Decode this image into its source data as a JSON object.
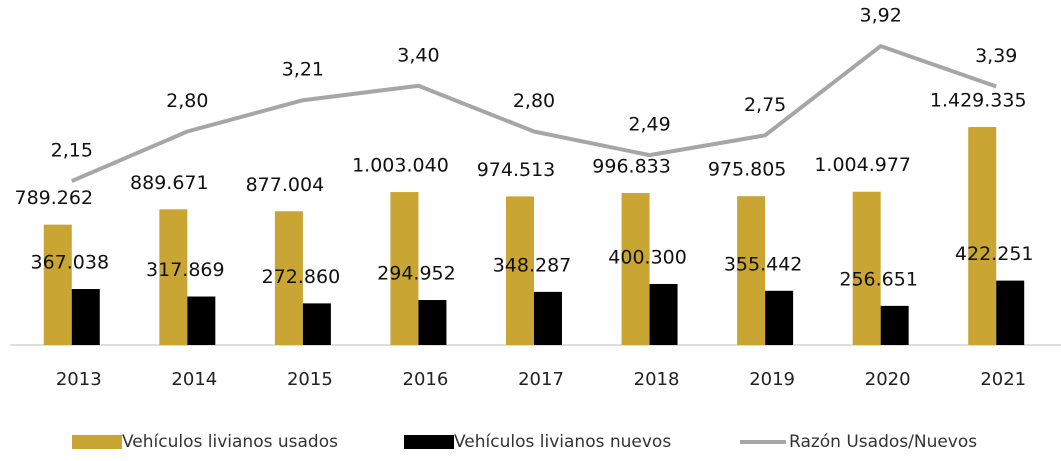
{
  "chart_data": {
    "type": "bar_line",
    "categories": [
      "2013",
      "2014",
      "2015",
      "2016",
      "2017",
      "2018",
      "2019",
      "2020",
      "2021"
    ],
    "series": [
      {
        "name": "Vehículos livianos usados",
        "color": "#c9a533",
        "type": "bar",
        "values": [
          789262,
          889671,
          877004,
          1003040,
          974513,
          996833,
          975805,
          1004977,
          1429335
        ],
        "value_labels": [
          "789.262",
          "889.671",
          "877.004",
          "1.003.040",
          "974.513",
          "996.833",
          "975.805",
          "1.004.977",
          "1.429.335"
        ]
      },
      {
        "name": "Vehículos livianos nuevos",
        "color": "#000000",
        "type": "bar",
        "values": [
          367038,
          317869,
          272860,
          294952,
          348287,
          400300,
          355442,
          256651,
          422251
        ],
        "value_labels": [
          "367.038",
          "317.869",
          "272.860",
          "294.952",
          "348.287",
          "400.300",
          "355.442",
          "256.651",
          "422.251"
        ]
      },
      {
        "name": "Razón Usados/Nuevos",
        "color": "#a6a6a6",
        "type": "line",
        "axis": "y2",
        "values": [
          2.15,
          2.8,
          3.21,
          3.4,
          2.8,
          2.49,
          2.75,
          3.92,
          3.39
        ],
        "value_labels": [
          "2,15",
          "2,80",
          "3,21",
          "3,40",
          "2,80",
          "2,49",
          "2,75",
          "3,92",
          "3,39"
        ]
      }
    ],
    "ylim": [
      0,
      2000000
    ],
    "y2lim": [
      0,
      4
    ],
    "legend": "bottom"
  }
}
